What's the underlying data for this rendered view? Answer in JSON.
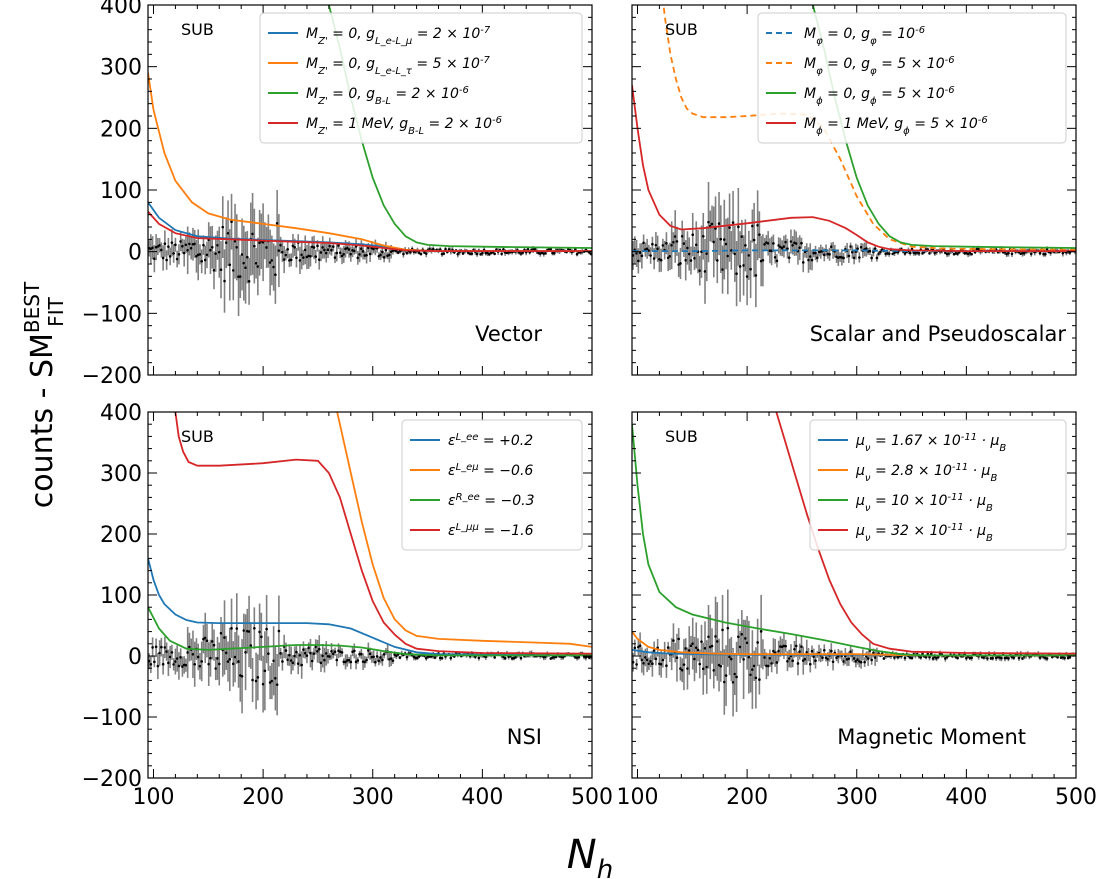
{
  "figure": {
    "ylabel_main": "counts - SM",
    "ylabel_sup": "BEST",
    "ylabel_sub": "FIT",
    "xlabel_main": "N",
    "xlabel_sub": "h"
  },
  "chart_data": [
    {
      "type": "line",
      "panel": "top-left",
      "title": "Vector",
      "tag": "SUB",
      "xlim": [
        95,
        500
      ],
      "ylim": [
        -200,
        400
      ],
      "xticks": [
        "100",
        "200",
        "300",
        "400",
        "500"
      ],
      "show_xticks": false,
      "show_yticks": true,
      "yticks": [
        "400",
        "300",
        "200",
        "100",
        "0",
        "−100",
        "−200"
      ],
      "legend_placement": "top-right",
      "series": [
        {
          "name": "M_{Z'} = 0,  g_{L_e-L_μ} = 2 × 10^{-7}",
          "color": "#1f77b4",
          "dash": false,
          "x": [
            95,
            105,
            120,
            140,
            170,
            200,
            230,
            260,
            290,
            310,
            330,
            360,
            400,
            450,
            500
          ],
          "y": [
            80,
            55,
            35,
            25,
            21,
            19,
            17,
            15,
            12,
            8,
            3,
            1,
            1,
            1,
            1
          ]
        },
        {
          "name": "M_{Z'} = 0,  g_{L_e-L_τ} = 5 × 10^{-7}",
          "color": "#ff7f0e",
          "dash": false,
          "x": [
            95,
            100,
            110,
            120,
            135,
            150,
            170,
            200,
            230,
            260,
            290,
            310,
            330,
            360,
            400,
            500
          ],
          "y": [
            290,
            230,
            160,
            115,
            80,
            62,
            52,
            45,
            38,
            30,
            20,
            10,
            3,
            1,
            1,
            1
          ]
        },
        {
          "name": "M_{Z'} = 0,  g_{B-L} = 2 × 10^{-6}",
          "color": "#2ca02c",
          "dash": false,
          "x": [
            250,
            260,
            270,
            280,
            290,
            300,
            310,
            320,
            330,
            340,
            350,
            370,
            400,
            450,
            500
          ],
          "y": [
            460,
            400,
            330,
            250,
            180,
            120,
            75,
            45,
            25,
            15,
            11,
            9,
            8,
            7,
            6
          ]
        },
        {
          "name": "M_{Z'} = 1 MeV,  g_{B-L} = 2 × 10^{-6}",
          "color": "#d62728",
          "dash": false,
          "x": [
            95,
            105,
            120,
            140,
            170,
            200,
            230,
            260,
            290,
            310,
            330,
            360,
            400,
            500
          ],
          "y": [
            65,
            45,
            30,
            22,
            20,
            18,
            16,
            14,
            10,
            6,
            2,
            1,
            1,
            1
          ]
        }
      ]
    },
    {
      "type": "line",
      "panel": "top-right",
      "title": "Scalar and Pseudoscalar",
      "tag": "SUB",
      "xlim": [
        95,
        500
      ],
      "ylim": [
        -200,
        400
      ],
      "xticks": [
        "100",
        "200",
        "300",
        "400",
        "500"
      ],
      "show_xticks": false,
      "show_yticks": false,
      "yticks": [
        "400",
        "300",
        "200",
        "100",
        "0",
        "−100",
        "−200"
      ],
      "legend_placement": "top-right",
      "series": [
        {
          "name": "M_φ = 0,  g_φ = 10^{-6}",
          "color": "#1f77b4",
          "dash": true,
          "x": [
            95,
            150,
            200,
            250,
            300,
            350,
            400,
            500
          ],
          "y": [
            1,
            1,
            2,
            2,
            2,
            1,
            1,
            1
          ]
        },
        {
          "name": "M_φ = 0,  g_φ = 5 × 10^{-6}",
          "color": "#ff7f0e",
          "dash": true,
          "x": [
            120,
            125,
            130,
            135,
            140,
            145,
            150,
            160,
            180,
            200,
            230,
            255,
            270,
            285,
            300,
            315,
            330,
            350,
            380,
            420,
            500
          ],
          "y": [
            460,
            380,
            320,
            280,
            250,
            232,
            224,
            218,
            218,
            220,
            224,
            222,
            200,
            150,
            90,
            45,
            20,
            8,
            5,
            4,
            3
          ]
        },
        {
          "name": "M_ϕ = 0,  g_ϕ = 5 × 10^{-6}",
          "color": "#2ca02c",
          "dash": false,
          "x": [
            250,
            260,
            270,
            280,
            290,
            300,
            310,
            320,
            330,
            340,
            350,
            370,
            400,
            450,
            500
          ],
          "y": [
            460,
            400,
            330,
            250,
            180,
            120,
            75,
            45,
            25,
            15,
            11,
            9,
            8,
            7,
            6
          ]
        },
        {
          "name": "M_ϕ = 1 MeV,  g_ϕ = 5 × 10^{-6}",
          "color": "#d62728",
          "dash": false,
          "x": [
            95,
            100,
            105,
            110,
            120,
            130,
            140,
            160,
            200,
            240,
            260,
            275,
            290,
            300,
            310,
            320,
            330,
            350,
            400,
            500
          ],
          "y": [
            270,
            200,
            140,
            100,
            60,
            42,
            36,
            38,
            46,
            55,
            56,
            50,
            38,
            27,
            15,
            8,
            4,
            2,
            1,
            1
          ]
        }
      ]
    },
    {
      "type": "line",
      "panel": "bottom-left",
      "title": "NSI",
      "tag": "SUB",
      "xlim": [
        95,
        500
      ],
      "ylim": [
        -200,
        400
      ],
      "xticks": [
        "100",
        "200",
        "300",
        "400",
        "500"
      ],
      "show_xticks": true,
      "show_yticks": true,
      "yticks": [
        "400",
        "300",
        "200",
        "100",
        "0",
        "−100",
        "−200"
      ],
      "legend_placement": "top-right",
      "series": [
        {
          "name": "ε^L_ee = +0.2",
          "color": "#1f77b4",
          "dash": false,
          "x": [
            95,
            100,
            105,
            110,
            120,
            130,
            140,
            160,
            200,
            240,
            260,
            280,
            300,
            320,
            340,
            360,
            400,
            500
          ],
          "y": [
            160,
            125,
            100,
            85,
            68,
            59,
            55,
            54,
            54,
            54,
            52,
            45,
            30,
            15,
            6,
            3,
            2,
            1
          ]
        },
        {
          "name": "ε^L_eμ = −0.6",
          "color": "#ff7f0e",
          "dash": false,
          "x": [
            260,
            270,
            280,
            290,
            300,
            310,
            320,
            330,
            340,
            360,
            400,
            450,
            480,
            500
          ],
          "y": [
            460,
            380,
            300,
            220,
            150,
            95,
            60,
            42,
            33,
            28,
            25,
            22,
            20,
            15
          ]
        },
        {
          "name": "ε^R_ee = −0.3",
          "color": "#2ca02c",
          "dash": false,
          "x": [
            95,
            105,
            115,
            130,
            150,
            170,
            200,
            230,
            250,
            270,
            290,
            310,
            330,
            360,
            400,
            500
          ],
          "y": [
            80,
            45,
            25,
            12,
            10,
            12,
            15,
            18,
            18,
            17,
            14,
            8,
            3,
            1,
            1,
            1
          ]
        },
        {
          "name": "ε^L_μμ = −1.6",
          "color": "#d62728",
          "dash": false,
          "x": [
            118,
            120,
            123,
            127,
            132,
            140,
            160,
            200,
            230,
            250,
            260,
            270,
            280,
            290,
            300,
            310,
            320,
            330,
            340,
            360,
            400,
            500
          ],
          "y": [
            430,
            400,
            360,
            335,
            318,
            312,
            312,
            316,
            322,
            320,
            300,
            260,
            200,
            140,
            90,
            55,
            35,
            20,
            12,
            8,
            5,
            4
          ]
        }
      ]
    },
    {
      "type": "line",
      "panel": "bottom-right",
      "title": "Magnetic Moment",
      "tag": "SUB",
      "xlim": [
        95,
        500
      ],
      "ylim": [
        -200,
        400
      ],
      "xticks": [
        "100",
        "200",
        "300",
        "400",
        "500"
      ],
      "show_xticks": true,
      "show_yticks": false,
      "yticks": [
        "400",
        "300",
        "200",
        "100",
        "0",
        "−100",
        "−200"
      ],
      "legend_placement": "top-right",
      "series": [
        {
          "name": "μ_ν = 1.67 × 10^{-11} · μ_B",
          "color": "#1f77b4",
          "dash": false,
          "x": [
            95,
            110,
            130,
            160,
            200,
            250,
            300,
            350,
            400,
            500
          ],
          "y": [
            10,
            6,
            4,
            3,
            2,
            2,
            2,
            1,
            1,
            1
          ]
        },
        {
          "name": "μ_ν = 2.8 × 10^{-11} · μ_B",
          "color": "#ff7f0e",
          "dash": false,
          "x": [
            95,
            100,
            110,
            120,
            140,
            170,
            200,
            250,
            300,
            330,
            360,
            400,
            500
          ],
          "y": [
            40,
            28,
            15,
            10,
            6,
            4,
            3,
            3,
            3,
            2,
            1,
            1,
            1
          ]
        },
        {
          "name": "μ_ν = 10 × 10^{-11} · μ_B",
          "color": "#2ca02c",
          "dash": false,
          "x": [
            95,
            100,
            105,
            110,
            120,
            135,
            150,
            180,
            210,
            240,
            270,
            300,
            320,
            340,
            360,
            400,
            500
          ],
          "y": [
            380,
            280,
            200,
            150,
            105,
            80,
            68,
            55,
            45,
            36,
            26,
            15,
            8,
            3,
            1,
            1,
            1
          ]
        },
        {
          "name": "μ_ν = 32 × 10^{-11} · μ_B",
          "color": "#d62728",
          "dash": false,
          "x": [
            215,
            225,
            235,
            245,
            255,
            265,
            275,
            285,
            295,
            305,
            315,
            330,
            350,
            400,
            500
          ],
          "y": [
            460,
            410,
            350,
            290,
            230,
            175,
            125,
            85,
            55,
            35,
            20,
            12,
            7,
            5,
            4
          ]
        }
      ]
    }
  ]
}
